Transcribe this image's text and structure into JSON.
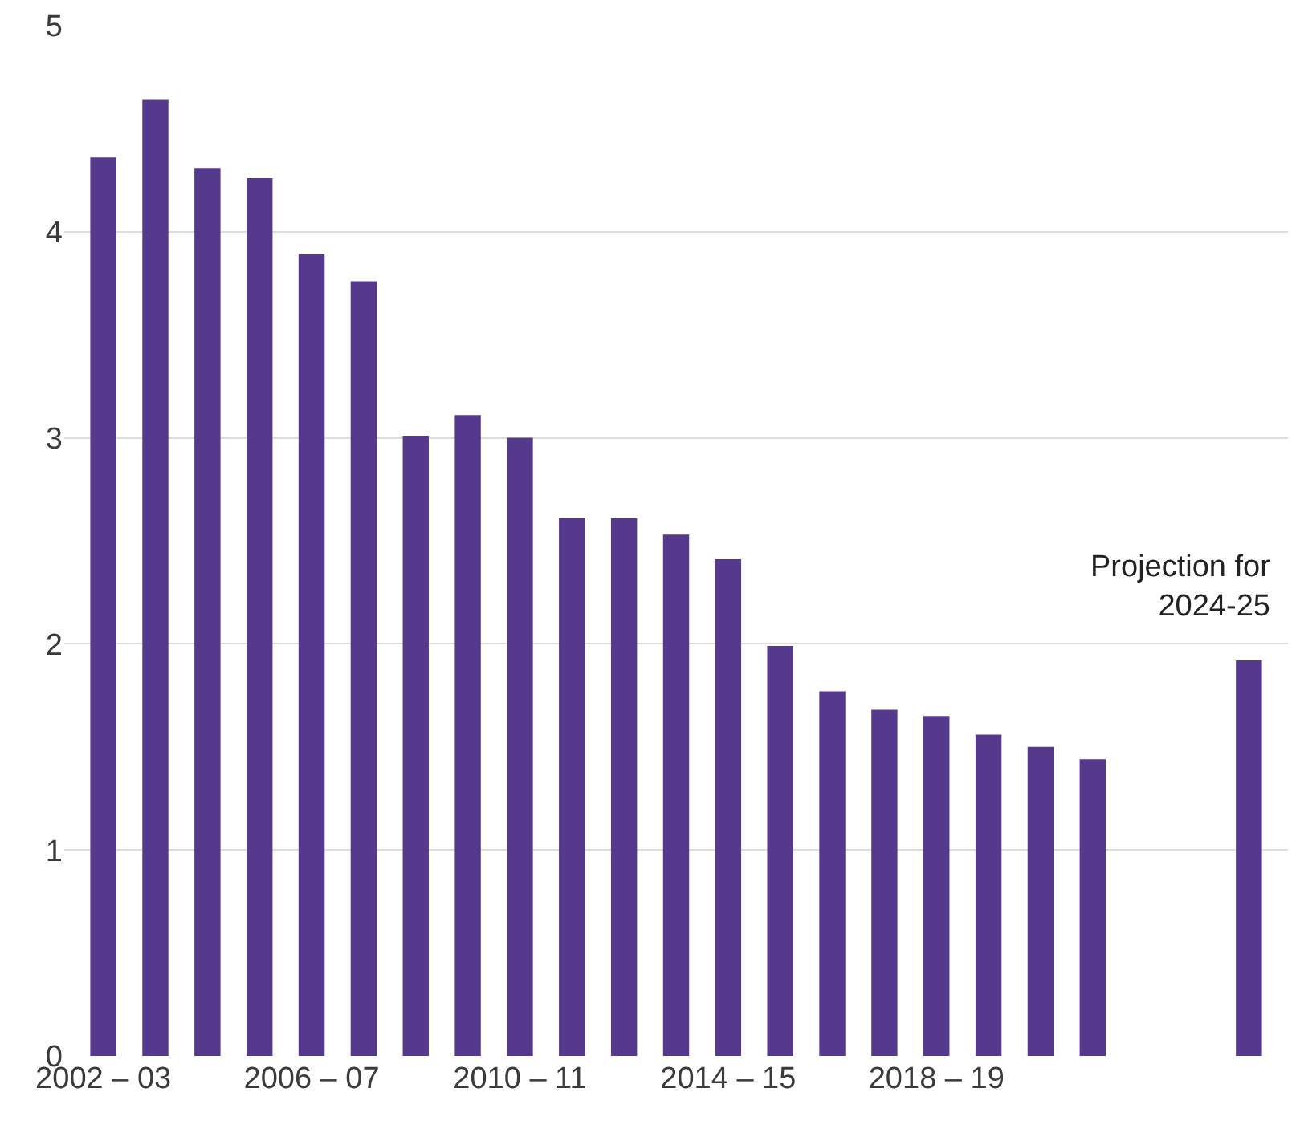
{
  "chart_data": {
    "type": "bar",
    "categories": [
      "2002 – 03",
      null,
      null,
      null,
      "2006 – 07",
      null,
      null,
      null,
      "2010 – 11",
      null,
      null,
      null,
      "2014 – 15",
      null,
      null,
      null,
      "2018 – 19",
      null,
      null,
      null,
      null,
      null,
      null
    ],
    "values": [
      4.36,
      4.64,
      4.31,
      4.26,
      3.89,
      3.76,
      3.01,
      3.11,
      3.0,
      2.61,
      2.61,
      2.53,
      2.41,
      1.99,
      1.77,
      1.68,
      1.65,
      1.56,
      1.5,
      1.44,
      null,
      null,
      1.92
    ],
    "color": "#55398c",
    "ylim": [
      0,
      5
    ],
    "yticks": [
      0,
      1,
      2,
      3,
      4,
      5
    ],
    "grid": "y",
    "annotations": [
      "Projection for\n2024-25"
    ]
  }
}
